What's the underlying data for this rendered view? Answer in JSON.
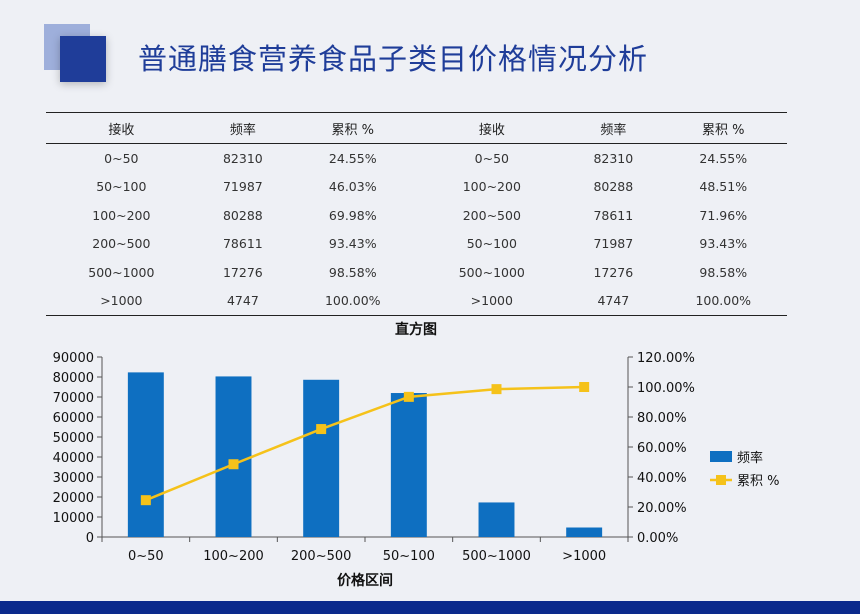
{
  "header": {
    "title": "普通膳食营养食品子类目价格情况分析"
  },
  "table": {
    "headers": [
      "接收",
      "频率",
      "累积 %",
      "接收",
      "频率",
      "累积 %"
    ],
    "rows": [
      [
        "0~50",
        "82310",
        "24.55%",
        "0~50",
        "82310",
        "24.55%"
      ],
      [
        "50~100",
        "71987",
        "46.03%",
        "100~200",
        "80288",
        "48.51%"
      ],
      [
        "100~200",
        "80288",
        "69.98%",
        "200~500",
        "78611",
        "71.96%"
      ],
      [
        "200~500",
        "78611",
        "93.43%",
        "50~100",
        "71987",
        "93.43%"
      ],
      [
        "500~1000",
        "17276",
        "98.58%",
        "500~1000",
        "17276",
        "98.58%"
      ],
      [
        ">1000",
        "4747",
        "100.00%",
        ">1000",
        "4747",
        "100.00%"
      ]
    ]
  },
  "chart_data": {
    "type": "bar",
    "title": "直方图",
    "xlabel": "价格区间",
    "ylabel": "",
    "categories": [
      "0~50",
      "100~200",
      "200~500",
      "50~100",
      "500~1000",
      ">1000"
    ],
    "series": [
      {
        "name": "频率",
        "type": "bar",
        "axis": "left",
        "color": "#0e6fc1",
        "values": [
          82310,
          80288,
          78611,
          71987,
          17276,
          4747
        ]
      },
      {
        "name": "累积 %",
        "type": "line",
        "axis": "right",
        "color": "#f5c21a",
        "marker": "square",
        "values": [
          24.55,
          48.51,
          71.96,
          93.43,
          98.58,
          100.0
        ]
      }
    ],
    "ylim": [
      0,
      90000
    ],
    "yticks": [
      "0",
      "10000",
      "20000",
      "30000",
      "40000",
      "50000",
      "60000",
      "70000",
      "80000",
      "90000"
    ],
    "y2lim": [
      0,
      120
    ],
    "y2ticks": [
      "0.00%",
      "20.00%",
      "40.00%",
      "60.00%",
      "80.00%",
      "100.00%",
      "120.00%"
    ],
    "legend": "right",
    "grid": false
  }
}
